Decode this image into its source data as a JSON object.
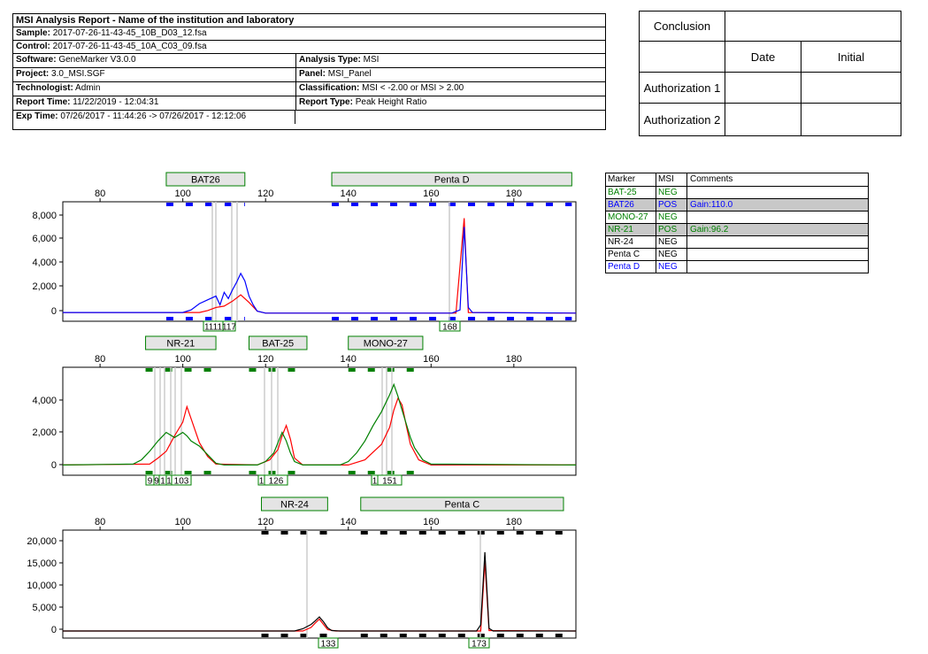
{
  "report": {
    "title": "MSI Analysis Report   - Name of the institution and laboratory",
    "sample_label": "Sample:",
    "sample": "2017-07-26-11-43-45_10B_D03_12.fsa",
    "control_label": "Control:",
    "control": "2017-07-26-11-43-45_10A_C03_09.fsa",
    "software_label": "Software:",
    "software": "GeneMarker V3.0.0",
    "analysis_type_label": "Analysis Type:",
    "analysis_type": "MSI",
    "project_label": "Project:",
    "project": "3.0_MSI.SGF",
    "panel_label": "Panel:",
    "panel": "MSI_Panel",
    "technologist_label": "Technologist:",
    "technologist": "Admin",
    "classification_label": "Classification:",
    "classification": "MSI < -2.00 or MSI > 2.00",
    "report_time_label": "Report Time:",
    "report_time": "11/22/2019 - 12:04:31",
    "report_type_label": "Report Type:",
    "report_type": "Peak Height Ratio",
    "exp_time_label": "Exp Time:",
    "exp_time": "07/26/2017 - 11:44:26 -> 07/26/2017 - 12:12:06"
  },
  "conclusion": {
    "conclusion_label": "Conclusion",
    "date_label": "Date",
    "initial_label": "Initial",
    "auth1_label": "Authorization 1",
    "auth2_label": "Authorization 2"
  },
  "msi_table": {
    "headers": [
      "Marker",
      "MSI",
      "Comments"
    ],
    "rows": [
      {
        "marker": "BAT-25",
        "msi": "NEG",
        "comment": "",
        "color": "#008000",
        "pos": false
      },
      {
        "marker": "BAT26",
        "msi": "POS",
        "comment": "Gain:110.0",
        "color": "#0000ff",
        "pos": true
      },
      {
        "marker": "MONO-27",
        "msi": "NEG",
        "comment": "",
        "color": "#008000",
        "pos": false
      },
      {
        "marker": "NR-21",
        "msi": "POS",
        "comment": "Gain:96.2",
        "color": "#008000",
        "pos": true
      },
      {
        "marker": "NR-24",
        "msi": "NEG",
        "comment": "",
        "color": "#000000",
        "pos": false
      },
      {
        "marker": "Penta C",
        "msi": "NEG",
        "comment": "",
        "color": "#000000",
        "pos": false
      },
      {
        "marker": "Penta D",
        "msi": "NEG",
        "comment": "",
        "color": "#0000ff",
        "pos": false
      }
    ]
  },
  "chart_data": [
    {
      "type": "line",
      "trace_color": "#0000ff",
      "x_ticks": [
        80,
        100,
        120,
        140,
        160,
        180
      ],
      "xlim": [
        71,
        195
      ],
      "y_ticks": [
        "0",
        "2,000",
        "4,000",
        "6,000",
        "8,000"
      ],
      "ylim": [
        -500,
        9000
      ],
      "markers": [
        {
          "name": "BAT26",
          "range": [
            96,
            115
          ]
        },
        {
          "name": "Penta D",
          "range": [
            136,
            194
          ]
        }
      ],
      "peak_labels": [
        "1111",
        "117",
        "168"
      ],
      "series": [
        {
          "color": "#0000ff",
          "points": [
            [
              71,
              200
            ],
            [
              100,
              200
            ],
            [
              102,
              400
            ],
            [
              104,
              900
            ],
            [
              106,
              1200
            ],
            [
              108,
              1500
            ],
            [
              109,
              800
            ],
            [
              110,
              1800
            ],
            [
              111,
              1300
            ],
            [
              112,
              2000
            ],
            [
              113,
              2600
            ],
            [
              114,
              3300
            ],
            [
              115,
              2700
            ],
            [
              116,
              1500
            ],
            [
              117,
              800
            ],
            [
              118,
              300
            ],
            [
              120,
              150
            ],
            [
              165,
              150
            ],
            [
              167,
              400
            ],
            [
              168,
              7000
            ],
            [
              169,
              600
            ],
            [
              170,
              200
            ],
            [
              195,
              150
            ]
          ]
        },
        {
          "color": "#ff0000",
          "points": [
            [
              71,
              200
            ],
            [
              104,
              200
            ],
            [
              106,
              350
            ],
            [
              108,
              600
            ],
            [
              110,
              700
            ],
            [
              112,
              1100
            ],
            [
              114,
              1600
            ],
            [
              116,
              1000
            ],
            [
              118,
              300
            ],
            [
              120,
              150
            ],
            [
              166,
              150
            ],
            [
              168,
              7700
            ],
            [
              169,
              200
            ],
            [
              195,
              150
            ]
          ]
        }
      ]
    },
    {
      "type": "line",
      "trace_color": "#008000",
      "x_ticks": [
        80,
        100,
        120,
        140,
        160,
        180
      ],
      "xlim": [
        71,
        195
      ],
      "y_ticks": [
        "0",
        "2,000",
        "4,000"
      ],
      "ylim": [
        -500,
        5800
      ],
      "markers": [
        {
          "name": "NR-21",
          "range": [
            91,
            108
          ]
        },
        {
          "name": "BAT-25",
          "range": [
            116,
            130
          ]
        },
        {
          "name": "MONO-27",
          "range": [
            140,
            158
          ]
        }
      ],
      "peak_labels": [
        "9",
        "9",
        "1",
        "1",
        "103",
        "1",
        "126",
        "1",
        "151"
      ],
      "series": [
        {
          "color": "#008000",
          "points": [
            [
              71,
              100
            ],
            [
              88,
              150
            ],
            [
              90,
              400
            ],
            [
              92,
              900
            ],
            [
              94,
              1500
            ],
            [
              96,
              2000
            ],
            [
              98,
              1700
            ],
            [
              100,
              2000
            ],
            [
              101,
              1800
            ],
            [
              102,
              1500
            ],
            [
              104,
              1200
            ],
            [
              106,
              700
            ],
            [
              108,
              200
            ],
            [
              110,
              100
            ],
            [
              118,
              100
            ],
            [
              120,
              300
            ],
            [
              122,
              800
            ],
            [
              123,
              1400
            ],
            [
              124,
              2000
            ],
            [
              125,
              1500
            ],
            [
              126,
              800
            ],
            [
              127,
              300
            ],
            [
              129,
              100
            ],
            [
              138,
              100
            ],
            [
              140,
              300
            ],
            [
              142,
              800
            ],
            [
              144,
              1500
            ],
            [
              146,
              2400
            ],
            [
              148,
              3200
            ],
            [
              150,
              4200
            ],
            [
              151,
              4800
            ],
            [
              152,
              4100
            ],
            [
              153,
              3300
            ],
            [
              154,
              2500
            ],
            [
              155,
              1700
            ],
            [
              156,
              1100
            ],
            [
              158,
              400
            ],
            [
              160,
              150
            ],
            [
              195,
              100
            ]
          ]
        },
        {
          "color": "#ff0000",
          "points": [
            [
              71,
              100
            ],
            [
              92,
              150
            ],
            [
              94,
              500
            ],
            [
              96,
              900
            ],
            [
              98,
              1800
            ],
            [
              100,
              2600
            ],
            [
              101,
              3500
            ],
            [
              102,
              2800
            ],
            [
              103,
              2100
            ],
            [
              104,
              1400
            ],
            [
              106,
              600
            ],
            [
              108,
              150
            ],
            [
              118,
              100
            ],
            [
              121,
              400
            ],
            [
              123,
              1000
            ],
            [
              124,
              1800
            ],
            [
              125,
              2400
            ],
            [
              126,
              1600
            ],
            [
              127,
              500
            ],
            [
              129,
              100
            ],
            [
              140,
              100
            ],
            [
              144,
              400
            ],
            [
              148,
              1300
            ],
            [
              150,
              2300
            ],
            [
              151,
              3300
            ],
            [
              152,
              4000
            ],
            [
              153,
              3600
            ],
            [
              154,
              2400
            ],
            [
              155,
              1300
            ],
            [
              157,
              400
            ],
            [
              160,
              100
            ],
            [
              195,
              100
            ]
          ]
        }
      ]
    },
    {
      "type": "line",
      "trace_color": "#000000",
      "x_ticks": [
        80,
        100,
        120,
        140,
        160,
        180
      ],
      "xlim": [
        71,
        195
      ],
      "y_ticks": [
        "0",
        "5,000",
        "10,000",
        "15,000",
        "20,000"
      ],
      "ylim": [
        -1500,
        23000
      ],
      "markers": [
        {
          "name": "NR-24",
          "range": [
            119,
            135
          ]
        },
        {
          "name": "Penta C",
          "range": [
            143,
            192
          ]
        }
      ],
      "peak_labels": [
        "133",
        "173"
      ],
      "series": [
        {
          "color": "#000000",
          "points": [
            [
              71,
              100
            ],
            [
              127,
              100
            ],
            [
              129,
              600
            ],
            [
              131,
              1600
            ],
            [
              132,
              2400
            ],
            [
              133,
              3300
            ],
            [
              134,
              2200
            ],
            [
              135,
              800
            ],
            [
              136,
              200
            ],
            [
              138,
              100
            ],
            [
              171,
              100
            ],
            [
              172,
              1500
            ],
            [
              173,
              18000
            ],
            [
              174,
              700
            ],
            [
              175,
              100
            ],
            [
              195,
              100
            ]
          ]
        },
        {
          "color": "#ff0000",
          "points": [
            [
              71,
              100
            ],
            [
              129,
              100
            ],
            [
              131,
              900
            ],
            [
              132,
              1900
            ],
            [
              133,
              2800
            ],
            [
              134,
              1600
            ],
            [
              135,
              400
            ],
            [
              137,
              100
            ],
            [
              172,
              100
            ],
            [
              173,
              16000
            ],
            [
              174,
              200
            ],
            [
              195,
              100
            ]
          ]
        }
      ]
    }
  ]
}
